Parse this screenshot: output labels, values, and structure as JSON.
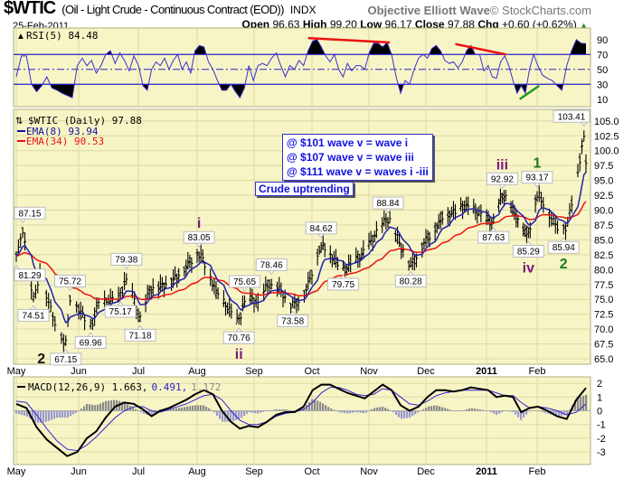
{
  "header": {
    "symbol": "$WTIC",
    "description": "(Oil - Light Crude - Continuous Contract (EOD))",
    "exchange": "INDX",
    "brand_bold": "Objective Elliott Wave",
    "brand_rest": "© StockCharts.com",
    "date": "25-Feb-2011",
    "open_label": "Open",
    "open": "96.63",
    "high_label": "High",
    "high": "99.20",
    "low_label": "Low",
    "low": "96.17",
    "close_label": "Close",
    "close": "97.88",
    "chg_label": "Chg",
    "chg": "+0.60 (+0.62%)",
    "chg_icon": "up-triangle-icon"
  },
  "legend": {
    "rsi": "RSI(5) 84.48",
    "price": "$WTIC (Daily) 97.88",
    "ema8": "EMA(8) 93.94",
    "ema34": "EMA(34) 90.53",
    "macd_main": "MACD(12,26,9) 1.663,",
    "macd_signal": "0.491,",
    "macd_hist": "1.172"
  },
  "annotations": {
    "box_lines": [
      "@ $101 wave v = wave i",
      "@ $107 wave v = wave iii",
      "@ $111 wave v = waves i -iii"
    ],
    "trend": "Crude uptrending"
  },
  "colors": {
    "bg": "#f7f5c6",
    "grid": "#dcd9a4",
    "rsi": "#3b2fd0",
    "ema8": "#2020b0",
    "ema34": "#ee1111",
    "hist_pos": "#8a8a8a",
    "hist_neg": "#9a9ad0",
    "wave_purple": "#7a1a7a",
    "wave_green": "#1a7a1a"
  },
  "chart_data": {
    "type": "line",
    "title": "$WTIC (Oil - Light Crude - Continuous Contract (EOD))",
    "start_date": "2010-05-03",
    "end_date": "2011-02-25",
    "months": [
      {
        "label": "May",
        "date": "2010-05-03"
      },
      {
        "label": "Jun",
        "date": "2010-06-01"
      },
      {
        "label": "Jul",
        "date": "2010-07-01"
      },
      {
        "label": "Aug",
        "date": "2010-08-02"
      },
      {
        "label": "Sep",
        "date": "2010-09-01"
      },
      {
        "label": "Oct",
        "date": "2010-10-01"
      },
      {
        "label": "Nov",
        "date": "2010-11-01"
      },
      {
        "label": "Dec",
        "date": "2010-12-01"
      },
      {
        "label": "2011",
        "date": "2011-01-03",
        "bold": true
      },
      {
        "label": "Feb",
        "date": "2011-02-01"
      }
    ],
    "price": {
      "ylim": [
        65,
        105
      ],
      "yticks": [
        "65.0",
        "67.5",
        "70.0",
        "72.5",
        "75.0",
        "77.5",
        "80.0",
        "82.5",
        "85.0",
        "87.5",
        "90.0",
        "92.5",
        "95.0",
        "97.5",
        "100.0",
        "102.5",
        "105.0"
      ],
      "points": [
        {
          "date": "2010-05-03",
          "value": 81.29,
          "label": "81.29",
          "type": "low"
        },
        {
          "date": "2010-05-06",
          "value": 87.15,
          "label": "87.15",
          "type": "high"
        },
        {
          "date": "2010-05-11",
          "value": 74.51,
          "label": "74.51",
          "type": "low"
        },
        {
          "date": "2010-05-14",
          "value": 79.5
        },
        {
          "date": "2010-05-20",
          "value": 72.0
        },
        {
          "date": "2010-05-26",
          "value": 67.15,
          "label": "67.15",
          "type": "low"
        },
        {
          "date": "2010-05-28",
          "value": 75.72,
          "label": "75.72",
          "type": "high"
        },
        {
          "date": "2010-06-07",
          "value": 69.96,
          "label": "69.96",
          "type": "low"
        },
        {
          "date": "2010-06-11",
          "value": 74.5
        },
        {
          "date": "2010-06-22",
          "value": 75.17,
          "label": "75.17",
          "type": "low"
        },
        {
          "date": "2010-06-25",
          "value": 79.38,
          "label": "79.38",
          "type": "high"
        },
        {
          "date": "2010-07-02",
          "value": 71.18,
          "label": "71.18",
          "type": "low"
        },
        {
          "date": "2010-07-07",
          "value": 76.5
        },
        {
          "date": "2010-07-16",
          "value": 77.5
        },
        {
          "date": "2010-07-23",
          "value": 79.0
        },
        {
          "date": "2010-08-03",
          "value": 83.05,
          "label": "83.05",
          "type": "high"
        },
        {
          "date": "2010-08-12",
          "value": 76.5
        },
        {
          "date": "2010-08-24",
          "value": 70.76,
          "label": "70.76",
          "type": "low"
        },
        {
          "date": "2010-08-27",
          "value": 75.65,
          "label": "75.65",
          "type": "high"
        },
        {
          "date": "2010-09-03",
          "value": 74.5
        },
        {
          "date": "2010-09-10",
          "value": 78.46,
          "label": "78.46",
          "type": "high"
        },
        {
          "date": "2010-09-21",
          "value": 73.58,
          "label": "73.58",
          "type": "low"
        },
        {
          "date": "2010-09-28",
          "value": 76.5
        },
        {
          "date": "2010-10-06",
          "value": 84.62,
          "label": "84.62",
          "type": "high"
        },
        {
          "date": "2010-10-18",
          "value": 79.75,
          "label": "79.75",
          "type": "low"
        },
        {
          "date": "2010-10-28",
          "value": 82.5
        },
        {
          "date": "2010-11-11",
          "value": 88.84,
          "label": "88.84",
          "type": "high"
        },
        {
          "date": "2010-11-23",
          "value": 80.28,
          "label": "80.28",
          "type": "low"
        },
        {
          "date": "2010-11-30",
          "value": 84.5
        },
        {
          "date": "2010-12-10",
          "value": 88.5
        },
        {
          "date": "2010-12-23",
          "value": 91.0
        },
        {
          "date": "2011-01-07",
          "value": 87.63,
          "label": "87.63",
          "type": "low"
        },
        {
          "date": "2011-01-12",
          "value": 92.92,
          "label": "92.92",
          "type": "high"
        },
        {
          "date": "2011-01-21",
          "value": 88.5
        },
        {
          "date": "2011-01-27",
          "value": 85.29,
          "label": "85.29",
          "type": "low"
        },
        {
          "date": "2011-02-01",
          "value": 93.17,
          "label": "93.17",
          "type": "high"
        },
        {
          "date": "2011-02-08",
          "value": 88.5
        },
        {
          "date": "2011-02-14",
          "value": 85.94,
          "label": "85.94",
          "type": "low"
        },
        {
          "date": "2011-02-16",
          "value": 88.0
        },
        {
          "date": "2011-02-22",
          "value": 98.0
        },
        {
          "date": "2011-02-24",
          "value": 103.41,
          "label": "103.41",
          "type": "high"
        },
        {
          "date": "2011-02-25",
          "value": 97.88
        }
      ],
      "waves": [
        {
          "label": "2",
          "point": 5,
          "color": "#111111",
          "side": "left"
        },
        {
          "label": "i",
          "point": 15,
          "color": "#7a1a7a",
          "side": "above"
        },
        {
          "label": "ii",
          "point": 17,
          "color": "#7a1a7a",
          "side": "below"
        },
        {
          "label": "iii",
          "point": 32,
          "color": "#7a1a7a",
          "side": "above"
        },
        {
          "label": "iv",
          "point": 34,
          "color": "#7a1a7a",
          "side": "below"
        },
        {
          "label": "1",
          "point": 35,
          "color": "#1a7a1a",
          "side": "above"
        },
        {
          "label": "2",
          "point": 37,
          "color": "#1a7a1a",
          "side": "below"
        }
      ]
    },
    "rsi": {
      "period": 5,
      "ylim": [
        0,
        100
      ],
      "yticks": [
        "90",
        "70",
        "50",
        "30",
        "10"
      ],
      "levels": [
        70,
        50,
        30
      ],
      "values": [
        40,
        68,
        68,
        30,
        20,
        28,
        40,
        25,
        22,
        18,
        15,
        12,
        55,
        65,
        55,
        62,
        45,
        55,
        70,
        75,
        58,
        72,
        62,
        48,
        68,
        55,
        28,
        22,
        50,
        60,
        55,
        65,
        50,
        62,
        70,
        50,
        60,
        45,
        75,
        82,
        80,
        60,
        50,
        35,
        22,
        22,
        30,
        20,
        12,
        25,
        55,
        35,
        55,
        58,
        55,
        65,
        72,
        55,
        40,
        55,
        50,
        62,
        55,
        75,
        88,
        90,
        80,
        68,
        60,
        70,
        50,
        40,
        58,
        48,
        55,
        55,
        50,
        72,
        85,
        85,
        80,
        86,
        70,
        40,
        18,
        35,
        30,
        50,
        65,
        70,
        65,
        78,
        82,
        75,
        62,
        58,
        60,
        52,
        60,
        75,
        82,
        70,
        70,
        48,
        55,
        40,
        38,
        60,
        68,
        55,
        35,
        18,
        28,
        18,
        50,
        70,
        55,
        42,
        38,
        35,
        28,
        22,
        55,
        75,
        90,
        85,
        84.48
      ],
      "trendlines": [
        {
          "from": {
            "date": "2010-09-29",
            "value": 92
          },
          "to": {
            "date": "2010-11-12",
            "value": 86
          },
          "color": "#ee1111"
        },
        {
          "from": {
            "date": "2010-12-17",
            "value": 84
          },
          "to": {
            "date": "2011-01-14",
            "value": 70
          },
          "color": "#ee1111"
        },
        {
          "from": {
            "date": "2011-01-22",
            "value": 10
          },
          "to": {
            "date": "2011-02-02",
            "value": 28
          },
          "color": "#1a9a1a"
        }
      ]
    },
    "macd": {
      "params": "12,26,9",
      "ylim": [
        -4,
        2.5
      ],
      "yticks": [
        "2",
        "1",
        "0",
        "-1",
        "-2",
        "-3"
      ],
      "macd": [
        0.5,
        0.2,
        -1.2,
        -2.1,
        -2.7,
        -3.3,
        -3.0,
        -2.0,
        -1.5,
        -0.5,
        0.3,
        0.6,
        0.5,
        0.1,
        -0.4,
        0.0,
        0.2,
        0.5,
        0.8,
        1.2,
        1.5,
        1.2,
        0.0,
        -0.8,
        -1.3,
        -1.1,
        -1.2,
        -0.8,
        -0.3,
        -0.1,
        -0.1,
        0.3,
        1.5,
        1.9,
        1.9,
        1.6,
        1.3,
        1.1,
        0.9,
        1.4,
        1.9,
        1.5,
        0.4,
        0.0,
        0.3,
        1.0,
        1.5,
        1.5,
        1.4,
        1.5,
        1.7,
        1.6,
        1.5,
        1.0,
        1.1,
        1.0,
        -0.1,
        0.2,
        0.3,
        0.0,
        -0.4,
        -0.6,
        0.8,
        1.663
      ],
      "signal": [
        0.7,
        0.6,
        -0.3,
        -1.3,
        -2.2,
        -2.8,
        -2.9,
        -2.5,
        -1.9,
        -1.2,
        -0.5,
        0.0,
        0.3,
        0.3,
        0.0,
        -0.1,
        0.1,
        0.3,
        0.5,
        0.8,
        1.1,
        1.2,
        0.8,
        0.0,
        -0.7,
        -1.0,
        -1.0,
        -0.8,
        -0.4,
        -0.2,
        -0.1,
        0.1,
        0.6,
        1.3,
        1.7,
        1.7,
        1.5,
        1.2,
        1.1,
        1.2,
        1.6,
        1.5,
        1.0,
        0.5,
        0.4,
        0.7,
        1.1,
        1.3,
        1.4,
        1.5,
        1.5,
        1.5,
        1.5,
        1.3,
        1.1,
        1.1,
        0.6,
        0.2,
        0.3,
        0.2,
        0.0,
        -0.3,
        -0.1,
        0.491
      ]
    }
  }
}
